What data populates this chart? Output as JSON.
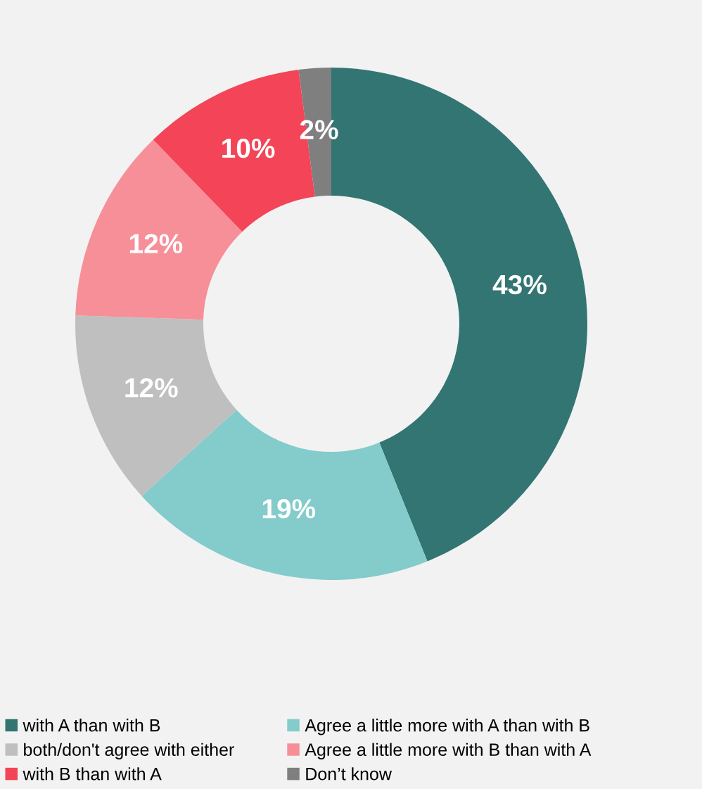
{
  "chart_data": {
    "type": "donut",
    "categories": [
      "with A than with B",
      "Agree a little more with A than with B",
      "both/don't agree with either",
      "Agree a little more with B than with A",
      "with B than with A",
      "Don’t know"
    ],
    "values": [
      43,
      19,
      12,
      12,
      10,
      2
    ],
    "colors": [
      "#327572",
      "#84cbcb",
      "#bfbfbf",
      "#f78f98",
      "#f44457",
      "#7f7f7f"
    ],
    "value_labels": [
      "43%",
      "19%",
      "12%",
      "12%",
      "10%",
      "2%"
    ],
    "legend": "bottom"
  }
}
